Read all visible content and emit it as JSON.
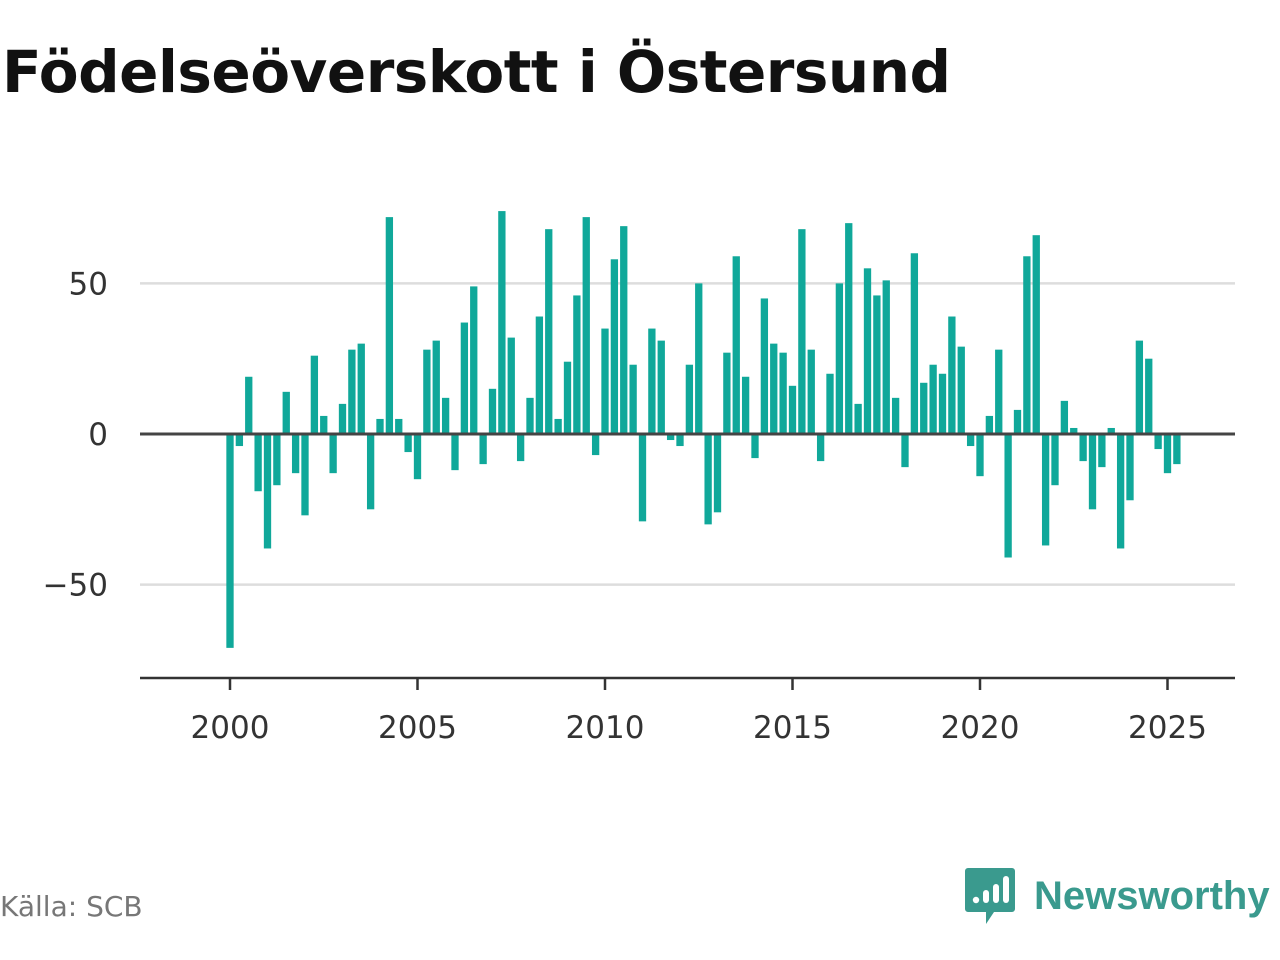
{
  "chart_data": {
    "type": "bar",
    "title": "Födelseöverskott i Östersund",
    "xlabel": "",
    "ylabel": "",
    "xlim": [
      1997.6,
      2026.8
    ],
    "ylim": [
      -81,
      81
    ],
    "x_ticks": [
      2000,
      2005,
      2010,
      2015,
      2020,
      2025
    ],
    "y_ticks": [
      -50,
      0,
      50
    ],
    "y_tick_labels": [
      "−50",
      "0",
      "50"
    ],
    "grid": true,
    "color": "#10a89a",
    "series": [
      {
        "x": [
          "2000-Q1",
          "2000-Q2",
          "2000-Q3",
          "2000-Q4",
          "2001-Q1",
          "2001-Q2",
          "2001-Q3",
          "2001-Q4",
          "2002-Q1",
          "2002-Q2",
          "2002-Q3",
          "2002-Q4",
          "2003-Q1",
          "2003-Q2",
          "2003-Q3",
          "2003-Q4",
          "2004-Q1",
          "2004-Q2",
          "2004-Q3",
          "2004-Q4",
          "2005-Q1",
          "2005-Q2",
          "2005-Q3",
          "2005-Q4",
          "2006-Q1",
          "2006-Q2",
          "2006-Q3",
          "2006-Q4",
          "2007-Q1",
          "2007-Q2",
          "2007-Q3",
          "2007-Q4",
          "2008-Q1",
          "2008-Q2",
          "2008-Q3",
          "2008-Q4",
          "2009-Q1",
          "2009-Q2",
          "2009-Q3",
          "2009-Q4",
          "2010-Q1",
          "2010-Q2",
          "2010-Q3",
          "2010-Q4",
          "2011-Q1",
          "2011-Q2",
          "2011-Q3",
          "2011-Q4",
          "2012-Q1",
          "2012-Q2",
          "2012-Q3",
          "2012-Q4",
          "2013-Q1",
          "2013-Q2",
          "2013-Q3",
          "2013-Q4",
          "2014-Q1",
          "2014-Q2",
          "2014-Q3",
          "2014-Q4",
          "2015-Q1",
          "2015-Q2",
          "2015-Q3",
          "2015-Q4",
          "2016-Q1",
          "2016-Q2",
          "2016-Q3",
          "2016-Q4",
          "2017-Q1",
          "2017-Q2",
          "2017-Q3",
          "2017-Q4",
          "2018-Q1",
          "2018-Q2",
          "2018-Q3",
          "2018-Q4",
          "2019-Q1",
          "2019-Q2",
          "2019-Q3",
          "2019-Q4",
          "2020-Q1",
          "2020-Q2",
          "2020-Q3",
          "2020-Q4",
          "2021-Q1",
          "2021-Q2",
          "2021-Q3",
          "2021-Q4",
          "2022-Q1",
          "2022-Q2",
          "2022-Q3",
          "2022-Q4",
          "2023-Q1",
          "2023-Q2",
          "2023-Q3",
          "2023-Q4",
          "2024-Q1",
          "2024-Q2",
          "2024-Q3",
          "2024-Q4",
          "2025-Q1",
          "2025-Q2"
        ],
        "values": [
          -71,
          -4,
          19,
          -19,
          -38,
          -17,
          14,
          -13,
          -27,
          26,
          6,
          -13,
          10,
          28,
          30,
          -25,
          5,
          72,
          5,
          -6,
          -15,
          28,
          31,
          12,
          -12,
          37,
          49,
          -10,
          15,
          74,
          32,
          -9,
          12,
          39,
          68,
          5,
          24,
          46,
          72,
          -7,
          35,
          58,
          69,
          23,
          -29,
          35,
          31,
          -2,
          -4,
          23,
          50,
          -30,
          -26,
          27,
          59,
          19,
          -8,
          45,
          30,
          27,
          16,
          68,
          28,
          -9,
          20,
          50,
          70,
          10,
          55,
          46,
          51,
          12,
          -11,
          60,
          17,
          23,
          20,
          39,
          29,
          -4,
          -14,
          6,
          28,
          -41,
          8,
          59,
          66,
          -37,
          -17,
          11,
          2,
          -9,
          -25,
          -11,
          2,
          -38,
          -22,
          31,
          25,
          -5,
          -13,
          -10
        ]
      }
    ]
  },
  "footer": {
    "source": "Källa: SCB",
    "brand": "Newsworthy",
    "brand_color": "#3a9a8e"
  }
}
